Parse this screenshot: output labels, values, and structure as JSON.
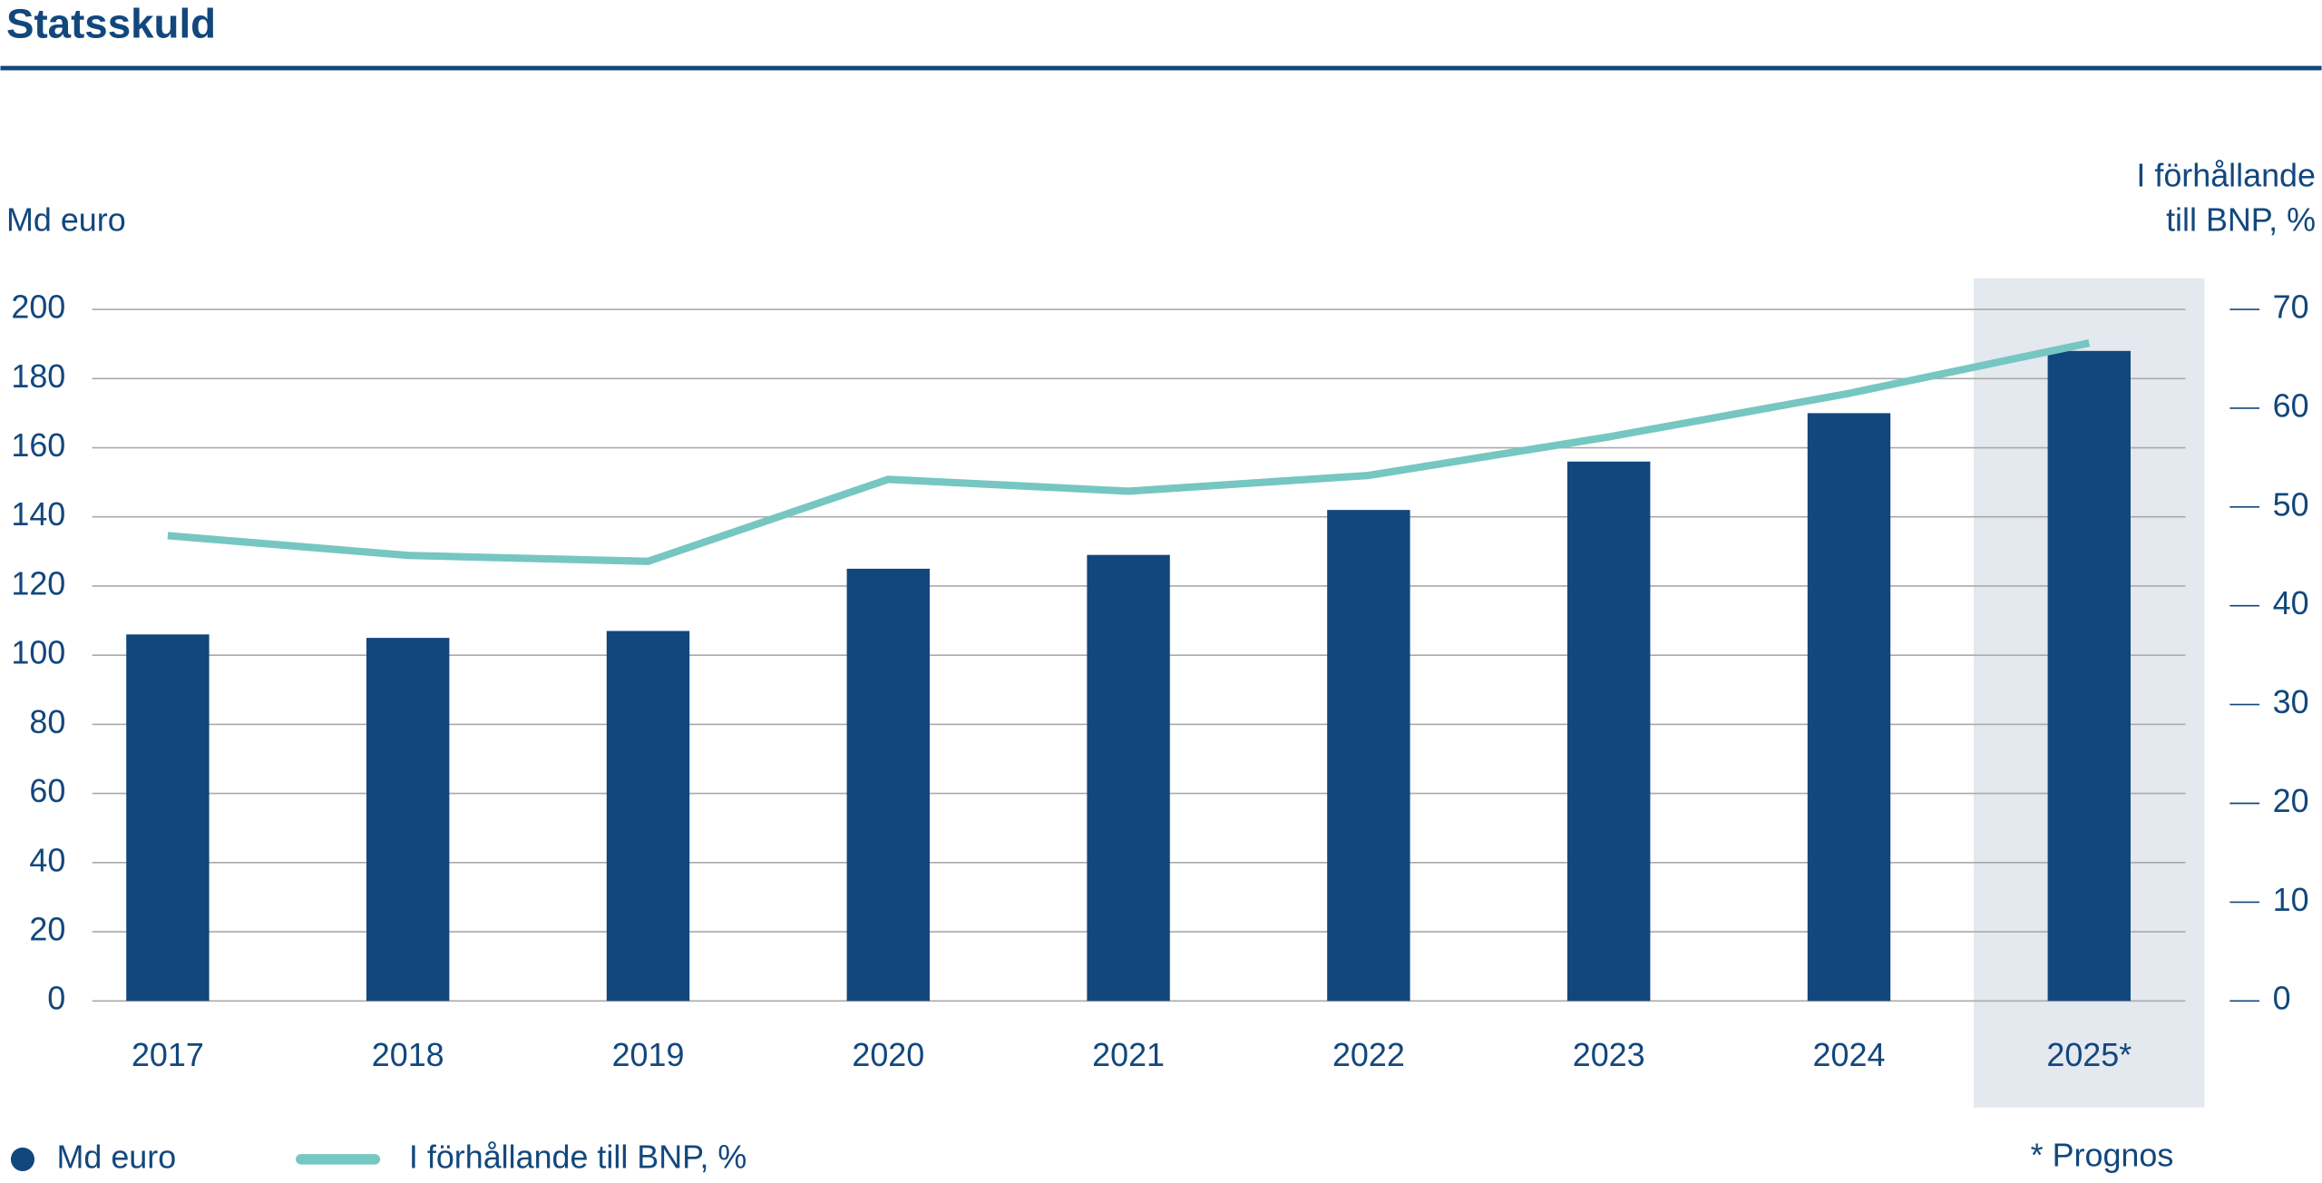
{
  "chart_data": {
    "type": "bar-line",
    "title": "Statsskuld",
    "y_label": "Md euro",
    "y2_label": [
      "I förhållande",
      "till BNP, %"
    ],
    "note": "* Prognos",
    "categories": [
      "2017",
      "2018",
      "2019",
      "2020",
      "2021",
      "2022",
      "2023",
      "2024",
      "2025*"
    ],
    "series": [
      {
        "name": "Md euro",
        "type": "bar",
        "color": "#12477d",
        "values": [
          106,
          105,
          107,
          125,
          129,
          142,
          156,
          170,
          188
        ]
      },
      {
        "name": "I förhållande till BNP, %",
        "type": "line",
        "axis": "y2",
        "color": "#76c6c2",
        "values": [
          47.1,
          45.1,
          44.5,
          52.8,
          51.6,
          53.2,
          57.1,
          61.5,
          66.6
        ]
      }
    ],
    "ylim": [
      0,
      200
    ],
    "yticks": [
      0,
      20,
      40,
      60,
      80,
      100,
      120,
      140,
      160,
      180,
      200
    ],
    "y2lim": [
      0,
      70
    ],
    "y2ticks": [
      0,
      10,
      20,
      30,
      40,
      50,
      60,
      70
    ],
    "grid": true,
    "shade": {
      "index": 8,
      "color": "#e4e8ef"
    }
  }
}
